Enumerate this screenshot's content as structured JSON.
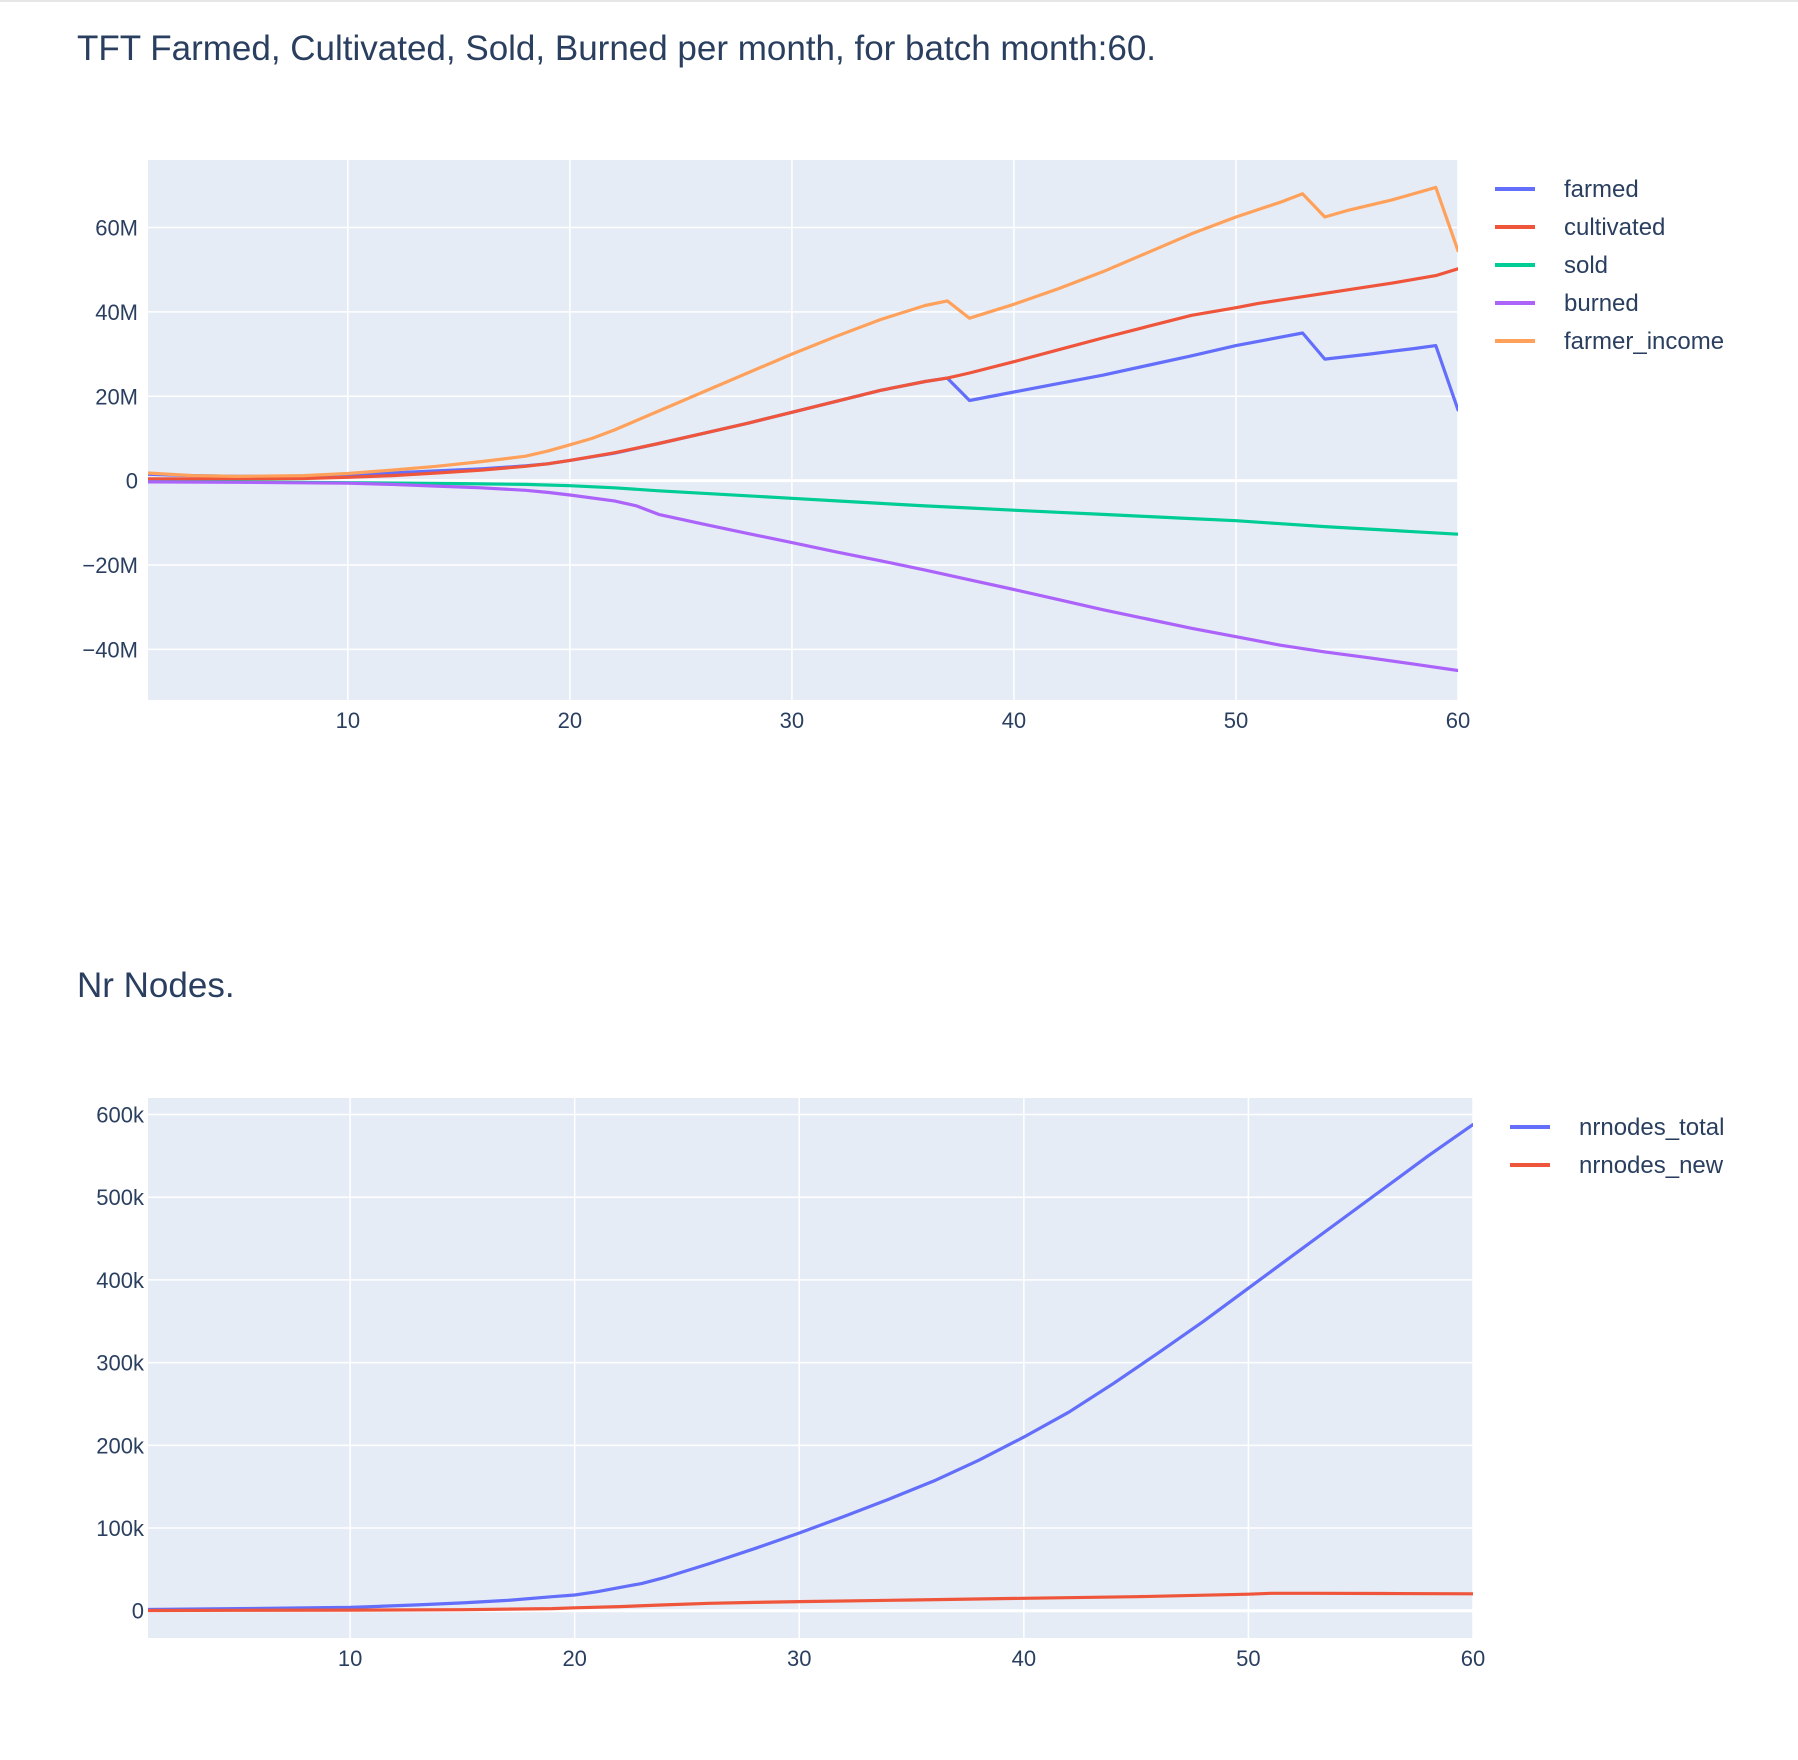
{
  "chart_data": [
    {
      "type": "line",
      "title": "TFT Farmed, Cultivated, Sold, Burned per month, for batch month:60.",
      "xlabel": "",
      "ylabel": "",
      "xlim": [
        1,
        60
      ],
      "ylim": [
        -52000000,
        76000000
      ],
      "xticks": [
        10,
        20,
        30,
        40,
        50,
        60
      ],
      "yticks": [
        60000000,
        40000000,
        20000000,
        0,
        -20000000,
        -40000000
      ],
      "ytick_labels": [
        "60M",
        "40M",
        "20M",
        "0",
        "−20M",
        "−40M"
      ],
      "grid": true,
      "legend_position": "top-right",
      "series": [
        {
          "name": "farmed",
          "color": "#636efa",
          "points": [
            [
              1,
              1500000.0
            ],
            [
              3,
              1200000.0
            ],
            [
              5,
              1000000.0
            ],
            [
              8,
              1100000.0
            ],
            [
              10,
              1300000.0
            ],
            [
              12,
              1800000.0
            ],
            [
              14,
              2300000.0
            ],
            [
              16,
              2800000.0
            ],
            [
              18,
              3500000.0
            ],
            [
              19,
              4000000.0
            ],
            [
              20,
              4800000.0
            ],
            [
              22,
              6500000.0
            ],
            [
              24,
              8800000.0
            ],
            [
              26,
              11200000.0
            ],
            [
              28,
              13600000.0
            ],
            [
              30,
              16200000.0
            ],
            [
              32,
              18800000.0
            ],
            [
              34,
              21400000.0
            ],
            [
              36,
              23500000.0
            ],
            [
              37,
              24300000.0
            ],
            [
              38,
              19000000.0
            ],
            [
              40,
              21000000.0
            ],
            [
              42,
              23000000.0
            ],
            [
              44,
              25000000.0
            ],
            [
              46,
              27300000.0
            ],
            [
              48,
              29600000.0
            ],
            [
              50,
              32000000.0
            ],
            [
              52,
              34000000.0
            ],
            [
              53,
              35000000.0
            ],
            [
              54,
              28800000.0
            ],
            [
              56,
              30000000.0
            ],
            [
              58,
              31300000.0
            ],
            [
              59,
              32000000.0
            ],
            [
              60,
              16800000.0
            ]
          ]
        },
        {
          "name": "cultivated",
          "color": "#ef553b",
          "points": [
            [
              1,
              400000.0
            ],
            [
              3,
              400000.0
            ],
            [
              5,
              400000.0
            ],
            [
              8,
              500000.0
            ],
            [
              10,
              800000.0
            ],
            [
              12,
              1200000.0
            ],
            [
              14,
              1800000.0
            ],
            [
              16,
              2500000.0
            ],
            [
              18,
              3400000.0
            ],
            [
              19,
              4000000.0
            ],
            [
              20,
              4800000.0
            ],
            [
              22,
              6600000.0
            ],
            [
              24,
              8800000.0
            ],
            [
              26,
              11200000.0
            ],
            [
              28,
              13600000.0
            ],
            [
              30,
              16200000.0
            ],
            [
              32,
              18800000.0
            ],
            [
              34,
              21400000.0
            ],
            [
              36,
              23500000.0
            ],
            [
              37,
              24300000.0
            ],
            [
              38,
              25500000.0
            ],
            [
              40,
              28200000.0
            ],
            [
              42,
              31000000.0
            ],
            [
              44,
              33800000.0
            ],
            [
              46,
              36500000.0
            ],
            [
              48,
              39200000.0
            ],
            [
              50,
              41000000.0
            ],
            [
              51,
              42000000.0
            ],
            [
              53,
              43600000.0
            ],
            [
              55,
              45200000.0
            ],
            [
              57,
              46800000.0
            ],
            [
              59,
              48600000.0
            ],
            [
              60,
              50200000.0
            ]
          ]
        },
        {
          "name": "sold",
          "color": "#00cc96",
          "points": [
            [
              1,
              -300000.0
            ],
            [
              5,
              -300000.0
            ],
            [
              10,
              -500000.0
            ],
            [
              15,
              -700000.0
            ],
            [
              18,
              -900000.0
            ],
            [
              20,
              -1200000.0
            ],
            [
              22,
              -1700000.0
            ],
            [
              24,
              -2400000.0
            ],
            [
              26,
              -3000000.0
            ],
            [
              28,
              -3600000.0
            ],
            [
              30,
              -4200000.0
            ],
            [
              32,
              -4800000.0
            ],
            [
              34,
              -5400000.0
            ],
            [
              36,
              -6000000.0
            ],
            [
              38,
              -6500000.0
            ],
            [
              40,
              -7000000.0
            ],
            [
              42,
              -7500000.0
            ],
            [
              44,
              -8000000.0
            ],
            [
              46,
              -8500000.0
            ],
            [
              48,
              -9000000.0
            ],
            [
              50,
              -9500000.0
            ],
            [
              52,
              -10200000.0
            ],
            [
              54,
              -10900000.0
            ],
            [
              56,
              -11500000.0
            ],
            [
              58,
              -12100000.0
            ],
            [
              60,
              -12700000.0
            ]
          ]
        },
        {
          "name": "burned",
          "color": "#ab63fa",
          "points": [
            [
              1,
              -300000.0
            ],
            [
              5,
              -400000.0
            ],
            [
              10,
              -600000.0
            ],
            [
              12,
              -900000.0
            ],
            [
              14,
              -1300000.0
            ],
            [
              16,
              -1700000.0
            ],
            [
              18,
              -2300000.0
            ],
            [
              19,
              -2800000.0
            ],
            [
              20,
              -3400000.0
            ],
            [
              22,
              -4800000.0
            ],
            [
              23,
              -6000000.0
            ],
            [
              24,
              -8000000.0
            ],
            [
              26,
              -10300000.0
            ],
            [
              28,
              -12500000.0
            ],
            [
              30,
              -14700000.0
            ],
            [
              32,
              -16900000.0
            ],
            [
              34,
              -19000000.0
            ],
            [
              36,
              -21200000.0
            ],
            [
              38,
              -23500000.0
            ],
            [
              40,
              -25800000.0
            ],
            [
              42,
              -28200000.0
            ],
            [
              44,
              -30600000.0
            ],
            [
              46,
              -32800000.0
            ],
            [
              48,
              -35000000.0
            ],
            [
              50,
              -37000000.0
            ],
            [
              52,
              -39000000.0
            ],
            [
              54,
              -40600000.0
            ],
            [
              56,
              -42000000.0
            ],
            [
              58,
              -43500000.0
            ],
            [
              60,
              -45000000.0
            ]
          ]
        },
        {
          "name": "farmer_income",
          "color": "#ffa15a",
          "points": [
            [
              1,
              1800000.0
            ],
            [
              3,
              1200000.0
            ],
            [
              5,
              1000000.0
            ],
            [
              8,
              1200000.0
            ],
            [
              10,
              1700000.0
            ],
            [
              12,
              2500000.0
            ],
            [
              14,
              3400000.0
            ],
            [
              16,
              4500000.0
            ],
            [
              18,
              5800000.0
            ],
            [
              19,
              7000000.0
            ],
            [
              20,
              8500000.0
            ],
            [
              21,
              10000000.0
            ],
            [
              22,
              12000000.0
            ],
            [
              24,
              16500000.0
            ],
            [
              26,
              21000000.0
            ],
            [
              28,
              25500000.0
            ],
            [
              30,
              30000000.0
            ],
            [
              32,
              34200000.0
            ],
            [
              34,
              38200000.0
            ],
            [
              36,
              41500000.0
            ],
            [
              37,
              42600000.0
            ],
            [
              38,
              38500000.0
            ],
            [
              40,
              41800000.0
            ],
            [
              42,
              45500000.0
            ],
            [
              44,
              49500000.0
            ],
            [
              46,
              54000000.0
            ],
            [
              48,
              58500000.0
            ],
            [
              50,
              62500000.0
            ],
            [
              52,
              66000000.0
            ],
            [
              53,
              68000000.0
            ],
            [
              54,
              62500000.0
            ],
            [
              55,
              64000000.0
            ],
            [
              57,
              66500000.0
            ],
            [
              59,
              69500000.0
            ],
            [
              60,
              54500000.0
            ]
          ]
        }
      ]
    },
    {
      "type": "line",
      "title": "Nr Nodes.",
      "xlabel": "",
      "ylabel": "",
      "xlim": [
        1,
        60
      ],
      "ylim": [
        -33000,
        620000
      ],
      "xticks": [
        10,
        20,
        30,
        40,
        50,
        60
      ],
      "yticks": [
        600000,
        500000,
        400000,
        300000,
        200000,
        100000,
        0
      ],
      "ytick_labels": [
        "600k",
        "500k",
        "400k",
        "300k",
        "200k",
        "100k",
        "0"
      ],
      "grid": true,
      "legend_position": "top-right",
      "series": [
        {
          "name": "nrnodes_total",
          "color": "#636efa",
          "points": [
            [
              1,
              1500
            ],
            [
              5,
              2500
            ],
            [
              10,
              4000
            ],
            [
              11,
              5000
            ],
            [
              13,
              7000
            ],
            [
              15,
              9500
            ],
            [
              17,
              12500
            ],
            [
              19,
              17000
            ],
            [
              20,
              19000
            ],
            [
              21,
              23000
            ],
            [
              23,
              33000
            ],
            [
              24,
              40000
            ],
            [
              26,
              57000
            ],
            [
              28,
              75000
            ],
            [
              30,
              94000
            ],
            [
              32,
              114000
            ],
            [
              34,
              135000
            ],
            [
              36,
              157000
            ],
            [
              38,
              182000
            ],
            [
              40,
              210000
            ],
            [
              42,
              240000
            ],
            [
              44,
              275000
            ],
            [
              46,
              312000
            ],
            [
              48,
              350000
            ],
            [
              50,
              390000
            ],
            [
              52,
              430000
            ],
            [
              54,
              470000
            ],
            [
              56,
              510000
            ],
            [
              58,
              550000
            ],
            [
              60,
              588000
            ]
          ]
        },
        {
          "name": "nrnodes_new",
          "color": "#ef553b",
          "points": [
            [
              1,
              300
            ],
            [
              5,
              500
            ],
            [
              10,
              700
            ],
            [
              15,
              1200
            ],
            [
              19,
              2500
            ],
            [
              20,
              3500
            ],
            [
              22,
              5000
            ],
            [
              24,
              7000
            ],
            [
              26,
              9000
            ],
            [
              28,
              10000
            ],
            [
              30,
              11000
            ],
            [
              35,
              13000
            ],
            [
              40,
              15000
            ],
            [
              45,
              17000
            ],
            [
              50,
              20000
            ],
            [
              51,
              21000
            ],
            [
              53,
              21000
            ],
            [
              56,
              20800
            ],
            [
              60,
              20500
            ]
          ]
        }
      ]
    }
  ]
}
